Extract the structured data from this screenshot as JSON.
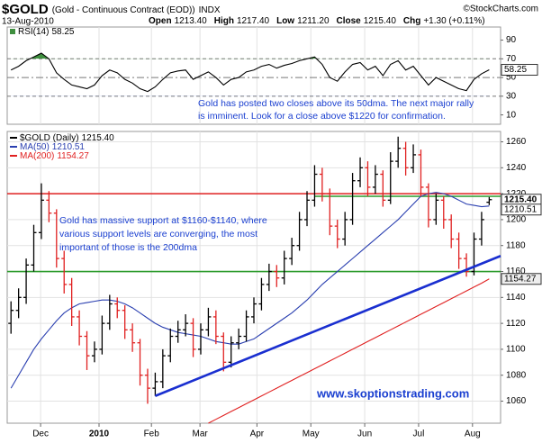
{
  "header": {
    "symbol": "$GOLD",
    "description": "(Gold - Continuous Contract (EOD))",
    "exchange": "INDX",
    "copyright": "©StockCharts.com",
    "date": "13-Aug-2010",
    "quote": [
      {
        "label": "Open",
        "value": "1213.40"
      },
      {
        "label": "High",
        "value": "1217.40"
      },
      {
        "label": "Low",
        "value": "1211.20"
      },
      {
        "label": "Close",
        "value": "1215.40"
      },
      {
        "label": "Chg",
        "value": "+1.30 (+0.11%)"
      }
    ]
  },
  "chart_data": [
    {
      "type": "line",
      "ylim": [
        0,
        104
      ],
      "yticks": [
        10,
        30,
        50,
        70,
        90
      ],
      "overbought": 70,
      "oversold": 30,
      "overbought_color": "#3f8f3f",
      "oversold_color": "#3355cc",
      "reference_lines": [
        {
          "value": 70,
          "style": "dashed"
        },
        {
          "value": 50,
          "style": "dashdot"
        },
        {
          "value": 30,
          "style": "dashed"
        }
      ],
      "series": [
        {
          "name": "RSI(14)",
          "color": "#000000",
          "last_label": "58.25",
          "values": [
            58,
            62,
            68,
            72,
            76,
            70,
            55,
            48,
            42,
            40,
            38,
            42,
            52,
            58,
            55,
            48,
            44,
            38,
            35,
            40,
            48,
            55,
            57,
            58,
            48,
            52,
            56,
            50,
            42,
            48,
            50,
            56,
            58,
            62,
            64,
            60,
            63,
            65,
            68,
            70,
            72,
            64,
            50,
            46,
            56,
            64,
            66,
            58,
            62,
            52,
            64,
            68,
            58,
            62,
            52,
            42,
            50,
            46,
            42,
            38,
            36,
            48,
            54,
            58.25
          ]
        }
      ],
      "annotation": [
        "Gold has posted two closes above its 50dma. The next major rally",
        "is imminent. Look for a close above $1220 for confirmation."
      ]
    },
    {
      "type": "ohlc",
      "xlim": [
        -0.5,
        64.5
      ],
      "ylim": [
        1043,
        1268
      ],
      "yticks": [
        1060,
        1080,
        1100,
        1120,
        1140,
        1160,
        1180,
        1200,
        1220,
        1240,
        1260
      ],
      "grid": true,
      "xticks": [
        {
          "value": 3.9,
          "label": "Dec"
        },
        {
          "value": 11.6,
          "label": "2010"
        },
        {
          "value": 18.5,
          "label": "Feb"
        },
        {
          "value": 24.9,
          "label": "Mar"
        },
        {
          "value": 32.4,
          "label": "Apr"
        },
        {
          "value": 39.5,
          "label": "May"
        },
        {
          "value": 46.6,
          "label": "Jun"
        },
        {
          "value": 53.7,
          "label": "Jul"
        },
        {
          "value": 60.8,
          "label": "Aug"
        }
      ],
      "series": [
        {
          "name": "$GOLD (Daily)",
          "type": "ohlc",
          "up_color": "#000000",
          "down_color": "#e02020",
          "last_label": "1215.40",
          "open": [
            1120,
            1130,
            1140,
            1165,
            1190,
            1215,
            1205,
            1170,
            1150,
            1125,
            1110,
            1095,
            1100,
            1120,
            1135,
            1130,
            1115,
            1105,
            1080,
            1070,
            1075,
            1095,
            1110,
            1115,
            1120,
            1100,
            1115,
            1125,
            1110,
            1090,
            1105,
            1110,
            1125,
            1135,
            1150,
            1160,
            1155,
            1170,
            1180,
            1200,
            1215,
            1235,
            1220,
            1195,
            1185,
            1200,
            1230,
            1240,
            1225,
            1235,
            1215,
            1245,
            1255,
            1240,
            1250,
            1225,
            1200,
            1215,
            1200,
            1185,
            1170,
            1160,
            1185,
            1213.4
          ],
          "high": [
            1137,
            1147,
            1170,
            1196,
            1228,
            1222,
            1208,
            1176,
            1155,
            1130,
            1114,
            1106,
            1126,
            1142,
            1140,
            1134,
            1120,
            1108,
            1085,
            1082,
            1100,
            1116,
            1122,
            1127,
            1124,
            1120,
            1132,
            1130,
            1113,
            1110,
            1116,
            1130,
            1140,
            1155,
            1166,
            1165,
            1176,
            1186,
            1206,
            1222,
            1242,
            1240,
            1224,
            1200,
            1206,
            1236,
            1248,
            1245,
            1242,
            1238,
            1252,
            1264,
            1260,
            1258,
            1254,
            1228,
            1220,
            1218,
            1204,
            1190,
            1174,
            1190,
            1206,
            1217.4
          ],
          "low": [
            1112,
            1124,
            1135,
            1160,
            1185,
            1198,
            1163,
            1143,
            1118,
            1103,
            1084,
            1090,
            1096,
            1115,
            1124,
            1108,
            1098,
            1072,
            1058,
            1064,
            1070,
            1090,
            1105,
            1110,
            1094,
            1096,
            1110,
            1104,
            1083,
            1086,
            1100,
            1106,
            1120,
            1130,
            1145,
            1148,
            1150,
            1165,
            1176,
            1195,
            1210,
            1214,
            1188,
            1178,
            1180,
            1196,
            1225,
            1218,
            1220,
            1210,
            1212,
            1240,
            1234,
            1236,
            1218,
            1194,
            1196,
            1193,
            1178,
            1162,
            1156,
            1157,
            1180,
            1211.2
          ],
          "close": [
            1130,
            1140,
            1165,
            1190,
            1215,
            1205,
            1170,
            1150,
            1125,
            1110,
            1095,
            1100,
            1120,
            1135,
            1130,
            1115,
            1105,
            1080,
            1070,
            1075,
            1095,
            1110,
            1115,
            1120,
            1100,
            1115,
            1125,
            1110,
            1090,
            1105,
            1110,
            1125,
            1135,
            1150,
            1160,
            1155,
            1170,
            1180,
            1200,
            1215,
            1235,
            1220,
            1195,
            1185,
            1200,
            1230,
            1240,
            1225,
            1235,
            1215,
            1245,
            1255,
            1240,
            1250,
            1225,
            1200,
            1215,
            1200,
            1185,
            1170,
            1160,
            1185,
            1200,
            1215.4
          ]
        },
        {
          "name": "MA(50)",
          "color": "#2a3fb0",
          "last_label": "1210.51",
          "values": [
            1070,
            1080,
            1090,
            1100,
            1108,
            1115,
            1122,
            1128,
            1132,
            1135,
            1136,
            1137,
            1138,
            1138,
            1137,
            1135,
            1132,
            1128,
            1124,
            1120,
            1117,
            1115,
            1113,
            1112,
            1111,
            1110,
            1108,
            1106,
            1105,
            1104,
            1104,
            1106,
            1108,
            1112,
            1116,
            1120,
            1124,
            1128,
            1133,
            1138,
            1144,
            1150,
            1155,
            1160,
            1165,
            1170,
            1175,
            1180,
            1185,
            1190,
            1195,
            1200,
            1206,
            1212,
            1218,
            1220,
            1221,
            1220,
            1218,
            1215,
            1212,
            1211,
            1210,
            1210.51
          ]
        },
        {
          "name": "MA(200)",
          "color": "#e02020",
          "last_label": "1154.27",
          "values": [
            null,
            null,
            null,
            null,
            null,
            null,
            null,
            null,
            null,
            null,
            null,
            null,
            null,
            null,
            null,
            null,
            null,
            null,
            null,
            null,
            null,
            null,
            null,
            null,
            null,
            null,
            1043,
            1046,
            1049,
            1052,
            1055,
            1058,
            1061,
            1064,
            1067,
            1070,
            1073,
            1076,
            1079,
            1082,
            1085,
            1088,
            1091,
            1094,
            1097,
            1100,
            1103,
            1106,
            1109,
            1112,
            1115,
            1118,
            1121,
            1124,
            1127,
            1130,
            1133,
            1136,
            1139,
            1142,
            1145,
            1148,
            1151,
            1154.27
          ]
        }
      ],
      "hlines": [
        {
          "value": 1220,
          "color": "#e02020",
          "from": -0.5,
          "to": 64.5
        },
        {
          "value": 1160,
          "color": "#2a9a2a",
          "from": -0.5,
          "to": 64.5
        },
        {
          "value": 1218,
          "color": "#2a9a2a",
          "from": 40,
          "to": 64.5
        }
      ],
      "trendline": {
        "color": "#1a2fd0",
        "x": [
          19,
          64.5
        ],
        "y": [
          1064,
          1172
        ]
      },
      "annotation": [
        "Gold has massive support at $1160-$1140, where",
        "various support levels are converging, the most",
        "important of those is the 200dma"
      ],
      "watermark": "www.skoptionstrading.com"
    }
  ]
}
